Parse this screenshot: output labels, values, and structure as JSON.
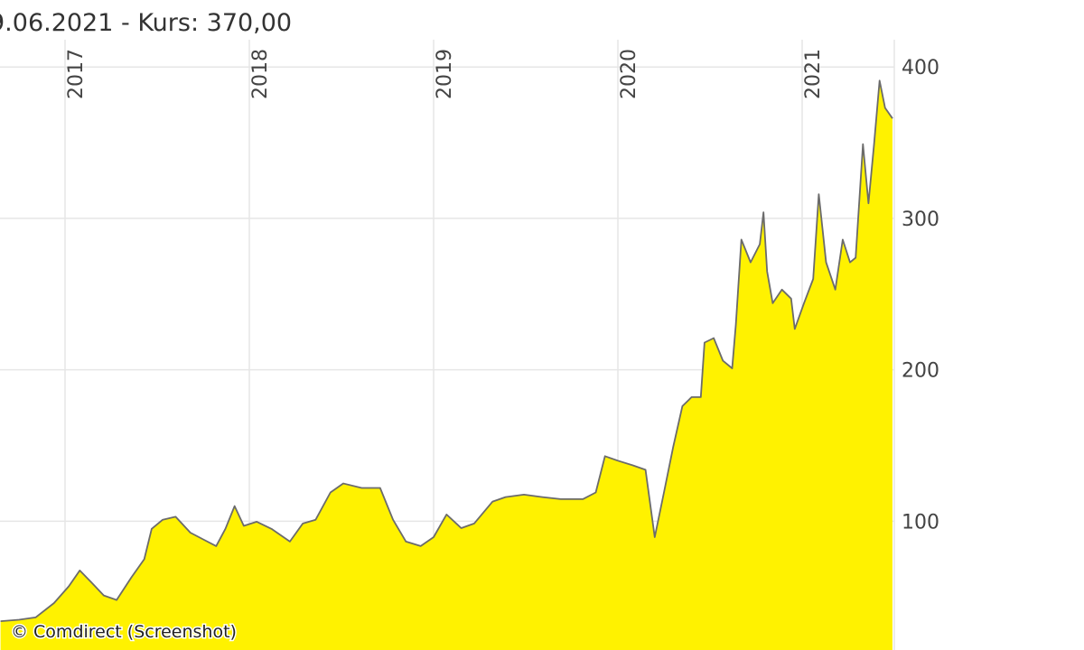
{
  "chart_data": {
    "type": "area",
    "title": "9.06.2021  -  Kurs: 370,00",
    "credit": "© Comdirect (Screenshot)",
    "color": "#fff200",
    "line_color": "#6b6b6b",
    "grid": true,
    "xlim": [
      2016.647,
      2021.5
    ],
    "xticks": [
      2017,
      2018,
      2019,
      2020,
      2021
    ],
    "ylim": [
      15,
      418
    ],
    "yticks": [
      100,
      200,
      300,
      400
    ],
    "x": [
      2016.65,
      2016.75,
      2016.84,
      2016.94,
      2017.02,
      2017.08,
      2017.14,
      2017.21,
      2017.28,
      2017.36,
      2017.43,
      2017.47,
      2017.53,
      2017.6,
      2017.68,
      2017.75,
      2017.82,
      2017.87,
      2017.92,
      2017.97,
      2018.04,
      2018.12,
      2018.22,
      2018.29,
      2018.36,
      2018.44,
      2018.51,
      2018.61,
      2018.71,
      2018.78,
      2018.85,
      2018.93,
      2019.0,
      2019.07,
      2019.15,
      2019.22,
      2019.32,
      2019.39,
      2019.49,
      2019.59,
      2019.69,
      2019.81,
      2019.88,
      2019.93,
      2020.0,
      2020.08,
      2020.15,
      2020.2,
      2020.25,
      2020.3,
      2020.35,
      2020.4,
      2020.45,
      2020.47,
      2020.52,
      2020.57,
      2020.62,
      2020.64,
      2020.67,
      2020.72,
      2020.77,
      2020.79,
      2020.81,
      2020.84,
      2020.89,
      2020.94,
      2020.96,
      2021.01,
      2021.06,
      2021.09,
      2021.13,
      2021.18,
      2021.22,
      2021.26,
      2021.29,
      2021.33,
      2021.36,
      2021.39,
      2021.42,
      2021.45,
      2021.49
    ],
    "values": [
      34,
      35,
      36.5,
      46,
      57,
      67.5,
      60,
      51,
      48,
      63,
      75,
      95,
      101,
      103,
      92.5,
      88,
      83.6,
      95,
      110,
      97,
      99.7,
      95,
      86.6,
      98.5,
      101,
      119,
      125,
      122,
      122,
      101,
      86.6,
      83.6,
      89.5,
      104.5,
      95.5,
      98.5,
      113,
      116,
      117.6,
      116,
      114.6,
      114.6,
      119,
      143,
      140,
      137,
      134,
      89.5,
      119,
      149,
      176,
      182,
      182,
      218,
      221,
      206,
      201,
      230,
      286,
      271,
      283,
      304,
      265,
      244,
      253,
      247,
      227,
      244,
      260,
      316,
      271,
      253,
      286,
      271,
      274,
      349,
      310,
      349,
      391,
      373,
      366
    ]
  }
}
